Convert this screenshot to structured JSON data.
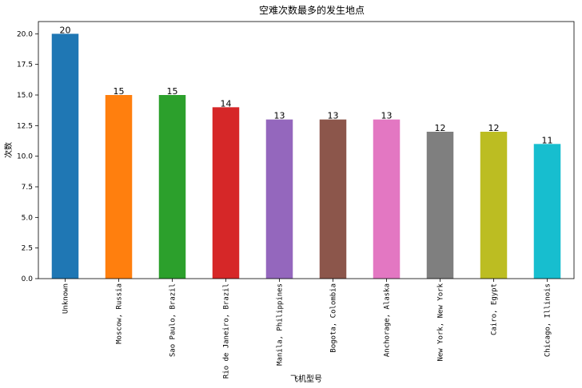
{
  "chart_data": {
    "type": "bar",
    "title": "空难次数最多的发生地点",
    "xlabel": "飞机型号",
    "ylabel": "次数",
    "categories": [
      "Unknown",
      "Moscow, Russia",
      "Sao Paulo, Brazil",
      "Rio de Janeiro, Brazil",
      "Manila, Philippines",
      "Bogota, Colombia",
      "Anchorage, Alaska",
      "New York, New York",
      "Cairo, Egypt",
      "Chicago, Illinois"
    ],
    "values": [
      20,
      15,
      15,
      14,
      13,
      13,
      13,
      12,
      12,
      11
    ],
    "data_labels": [
      "20",
      "15",
      "15",
      "14",
      "13",
      "13",
      "13",
      "12",
      "12",
      "11"
    ],
    "colors": [
      "#1f77b4",
      "#ff7f0e",
      "#2ca02c",
      "#d62728",
      "#9467bd",
      "#8c564b",
      "#e377c2",
      "#7f7f7f",
      "#bcbd22",
      "#17becf"
    ],
    "ylim": [
      0,
      21
    ],
    "yticks": [
      0.0,
      2.5,
      5.0,
      7.5,
      10.0,
      12.5,
      15.0,
      17.5,
      20.0
    ],
    "ytick_labels": [
      "0.0",
      "2.5",
      "5.0",
      "7.5",
      "10.0",
      "12.5",
      "15.0",
      "17.5",
      "20.0"
    ],
    "grid": false,
    "legend": "none"
  }
}
